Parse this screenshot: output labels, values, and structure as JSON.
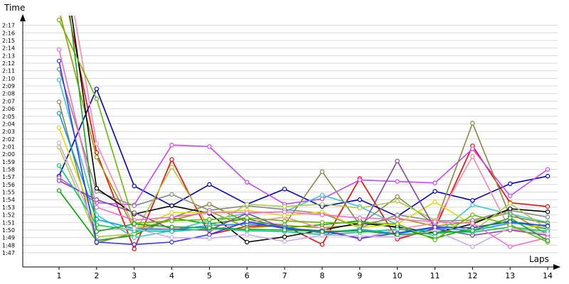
{
  "chart_data": {
    "type": "line",
    "ylabel": "Time",
    "xlabel": "Laps",
    "x": [
      1,
      2,
      3,
      4,
      5,
      6,
      7,
      8,
      9,
      10,
      11,
      12,
      13,
      14
    ],
    "ylim_seconds": [
      105,
      140
    ],
    "grid": "horizontal",
    "yticks": [
      {
        "label": "1:47",
        "seconds": 107
      },
      {
        "label": "1:48",
        "seconds": 108
      },
      {
        "label": "1:49",
        "seconds": 109
      },
      {
        "label": "1:50",
        "seconds": 110
      },
      {
        "label": "1:51",
        "seconds": 111
      },
      {
        "label": "1:52",
        "seconds": 112
      },
      {
        "label": "1:53",
        "seconds": 113
      },
      {
        "label": "1:54",
        "seconds": 114
      },
      {
        "label": "1:55",
        "seconds": 115
      },
      {
        "label": "1:56",
        "seconds": 116
      },
      {
        "label": "1:57",
        "seconds": 117
      },
      {
        "label": "1:58",
        "seconds": 118
      },
      {
        "label": "1:59",
        "seconds": 119
      },
      {
        "label": "2:00",
        "seconds": 120
      },
      {
        "label": "2:01",
        "seconds": 121
      },
      {
        "label": "2:02",
        "seconds": 122
      },
      {
        "label": "2:03",
        "seconds": 123
      },
      {
        "label": "2:04",
        "seconds": 124
      },
      {
        "label": "2:05",
        "seconds": 125
      },
      {
        "label": "2:06",
        "seconds": 126
      },
      {
        "label": "2:07",
        "seconds": 127
      },
      {
        "label": "2:08",
        "seconds": 128
      },
      {
        "label": "2:09",
        "seconds": 129
      },
      {
        "label": "2:10",
        "seconds": 130
      },
      {
        "label": "2:11",
        "seconds": 131
      },
      {
        "label": "2:12",
        "seconds": 132
      },
      {
        "label": "2:13",
        "seconds": 133
      },
      {
        "label": "2:14",
        "seconds": 134
      },
      {
        "label": "2:15",
        "seconds": 135
      },
      {
        "label": "2:16",
        "seconds": 136
      },
      {
        "label": "2:17",
        "seconds": 137
      }
    ],
    "xticks": [
      "1",
      "2",
      "3",
      "4",
      "5",
      "6",
      "7",
      "8",
      "9",
      "10",
      "11",
      "12",
      "13",
      "14"
    ],
    "series": [
      {
        "color": "#ff0000",
        "values_seconds": [
          145,
          120.2,
          107.5,
          119.3,
          109.4,
          110.5,
          110.6,
          108.1,
          116.8,
          108.8,
          110.2,
          121.1,
          113.6,
          113.1
        ]
      },
      {
        "color": "#0000cc",
        "values_seconds": [
          117.1,
          128.6,
          115.8,
          113.2,
          116.0,
          113.4,
          115.4,
          113.1,
          114.0,
          111.8,
          115.1,
          113.9,
          116.1,
          117.1
        ]
      },
      {
        "color": "#00aa00",
        "values_seconds": [
          115.2,
          108.6,
          109.3,
          111.6,
          110.8,
          111.5,
          110.3,
          110.7,
          111.2,
          110.3,
          108.9,
          110.3,
          111.2,
          110.1
        ]
      },
      {
        "color": "#cc44ff",
        "values_seconds": [
          116.9,
          113.6,
          113.3,
          121.2,
          121.0,
          116.3,
          113.4,
          114.1,
          116.6,
          116.4,
          116.2,
          120.7,
          114.5,
          118.0
        ]
      },
      {
        "color": "#999900",
        "values_seconds": [
          139.0,
          119.6,
          110.1,
          111.3,
          112.5,
          110.3,
          110.6,
          110.3,
          110.7,
          111.6,
          110.5,
          111.1,
          112.3,
          109.4
        ]
      },
      {
        "color": "#33cccc",
        "values_seconds": [
          129.8,
          112.0,
          109.0,
          109.9,
          111.3,
          112.2,
          112.4,
          114.6,
          113.1,
          110.7,
          109.2,
          113.3,
          112.1,
          111.0
        ]
      },
      {
        "color": "#888888",
        "values_seconds": [
          131.2,
          115.1,
          113.2,
          114.7,
          112.6,
          113.2,
          112.7,
          112.2,
          110.3,
          112.0,
          111.2,
          111.3,
          112.6,
          111.7
        ]
      },
      {
        "color": "#888844",
        "values_seconds": [
          126.9,
          108.3,
          109.6,
          111.6,
          113.4,
          111.0,
          110.7,
          117.7,
          110.7,
          114.4,
          110.7,
          124.1,
          111.8,
          110.9
        ]
      },
      {
        "color": "#000000",
        "values_seconds": [
          150,
          115.5,
          112.1,
          113.2,
          112.2,
          108.4,
          109.1,
          110.0,
          110.9,
          110.4,
          109.6,
          110.8,
          112.8,
          112.4
        ]
      },
      {
        "color": "#ff88aa",
        "values_seconds": [
          150,
          121.4,
          110.3,
          110.2,
          109.9,
          111.0,
          111.7,
          110.2,
          108.8,
          110.1,
          110.9,
          119.7,
          110.0,
          109.9
        ]
      },
      {
        "color": "#dddd00",
        "values_seconds": [
          123.5,
          110.6,
          110.1,
          112.3,
          112.3,
          112.6,
          111.9,
          112.4,
          110.3,
          110.8,
          113.7,
          110.7,
          110.0,
          110.7
        ]
      },
      {
        "color": "#0099ff",
        "values_seconds": [
          125.4,
          111.4,
          110.2,
          110.0,
          110.6,
          110.8,
          110.4,
          109.6,
          110.1,
          109.5,
          110.3,
          109.9,
          110.9,
          110.6
        ]
      },
      {
        "color": "#aacc44",
        "values_seconds": [
          120.9,
          109.1,
          109.5,
          118.3,
          110.3,
          113.4,
          113.1,
          113.4,
          112.9,
          113.8,
          111.3,
          109.8,
          113.5,
          110.1
        ]
      },
      {
        "color": "#8844aa",
        "values_seconds": [
          116.5,
          114.0,
          112.3,
          110.1,
          110.0,
          112.2,
          110.2,
          109.7,
          109.9,
          119.1,
          110.2,
          109.3,
          110.0,
          109.3
        ]
      },
      {
        "color": "#00cc88",
        "values_seconds": [
          118.5,
          110.7,
          109.9,
          109.8,
          110.2,
          109.9,
          109.8,
          109.4,
          109.7,
          110.1,
          109.8,
          109.7,
          110.4,
          109.8
        ]
      },
      {
        "color": "#3333ff",
        "values_seconds": [
          132.3,
          108.4,
          108.1,
          108.4,
          109.4,
          111.1,
          110.2,
          109.9,
          108.9,
          109.6,
          110.4,
          110.3,
          111.1,
          110.5
        ]
      },
      {
        "color": "#ccaaee",
        "values_seconds": [
          121.5,
          110.0,
          110.2,
          109.0,
          108.9,
          109.4,
          108.5,
          109.3,
          109.2,
          109.1,
          109.9,
          107.8,
          110.3,
          109.5
        ]
      },
      {
        "color": "#ff66cc",
        "values_seconds": [
          133.8,
          113.0,
          111.3,
          111.7,
          112.3,
          112.3,
          112.4,
          112.0,
          111.6,
          111.4,
          111.1,
          110.9,
          107.8,
          109.0
        ]
      },
      {
        "color": "#66bb00",
        "values_seconds": [
          137.7,
          127.3,
          110.9,
          111.2,
          111.4,
          111.6,
          111.2,
          111.0,
          110.9,
          110.8,
          108.7,
          112.0,
          110.7,
          108.4
        ]
      },
      {
        "color": "#11aa11",
        "values_seconds": [
          150,
          109.8,
          110.8,
          110.4,
          110.3,
          110.1,
          110.0,
          109.8,
          109.9,
          109.4,
          109.6,
          109.9,
          111.6,
          108.6
        ]
      }
    ]
  }
}
